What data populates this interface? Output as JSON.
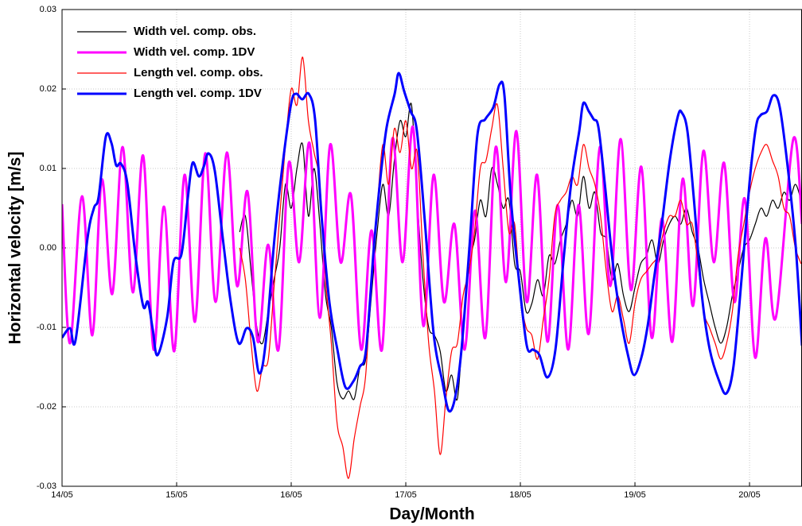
{
  "chart_data": {
    "type": "line",
    "xlabel": "Day/Month",
    "ylabel": "Horizontal velocity [m/s]",
    "xlim": [
      14,
      20.458
    ],
    "ylim": [
      -0.03,
      0.03
    ],
    "xticks": [
      {
        "value": 14,
        "label": "14/05"
      },
      {
        "value": 15,
        "label": "15/05"
      },
      {
        "value": 16,
        "label": "16/05"
      },
      {
        "value": 17,
        "label": "17/05"
      },
      {
        "value": 18,
        "label": "18/05"
      },
      {
        "value": 19,
        "label": "19/05"
      },
      {
        "value": 20,
        "label": "20/05"
      }
    ],
    "yticks": [
      -0.03,
      -0.02,
      -0.01,
      {
        "value": 0,
        "label": "0.00"
      },
      0.01,
      0.02,
      0.03
    ],
    "grid": true,
    "legend": "upper left",
    "series": [
      {
        "name": "Width vel. comp. obs.",
        "color": "#000000",
        "linewidth": 1.2,
        "x": [
          15.55,
          15.6,
          15.65,
          15.7,
          15.75,
          15.8,
          15.85,
          15.9,
          15.95,
          16,
          16.05,
          16.1,
          16.15,
          16.2,
          16.25,
          16.3,
          16.35,
          16.4,
          16.45,
          16.5,
          16.55,
          16.6,
          16.65,
          16.7,
          16.75,
          16.8,
          16.85,
          16.9,
          16.95,
          17,
          17.05,
          17.1,
          17.15,
          17.2,
          17.25,
          17.3,
          17.35,
          17.4,
          17.45,
          17.5,
          17.55,
          17.6,
          17.65,
          17.7,
          17.75,
          17.8,
          17.85,
          17.9,
          17.95,
          18,
          18.05,
          18.1,
          18.15,
          18.2,
          18.25,
          18.3,
          18.35,
          18.4,
          18.45,
          18.5,
          18.55,
          18.6,
          18.65,
          18.7,
          18.75,
          18.8,
          18.85,
          18.9,
          18.95,
          19,
          19.05,
          19.1,
          19.15,
          19.2,
          19.25,
          19.3,
          19.35,
          19.4,
          19.45,
          19.5,
          19.55,
          19.6,
          19.65,
          19.7,
          19.75,
          19.8,
          19.85,
          19.9,
          19.95,
          20,
          20.05,
          20.1,
          20.15,
          20.2,
          20.25,
          20.3,
          20.35,
          20.4,
          20.45
        ],
        "values": [
          0.002,
          0.004,
          -0.003,
          -0.01,
          -0.012,
          -0.008,
          -0.004,
          0,
          0.008,
          0.005,
          0.01,
          0.013,
          0.004,
          0.01,
          0.003,
          -0.006,
          -0.01,
          -0.017,
          -0.019,
          -0.018,
          -0.019,
          -0.015,
          -0.014,
          -0.006,
          0.002,
          0.008,
          0.004,
          0.011,
          0.016,
          0.014,
          0.018,
          0.006,
          -0.004,
          -0.01,
          -0.011,
          -0.013,
          -0.018,
          -0.016,
          -0.019,
          -0.01,
          -0.002,
          0.001,
          0.006,
          0.004,
          0.01,
          0.008,
          0.005,
          0.006,
          -0.002,
          -0.003,
          -0.008,
          -0.007,
          -0.004,
          -0.006,
          -0.001,
          -0.002,
          0.001,
          0.003,
          0.006,
          0.004,
          0.009,
          0.005,
          0.007,
          0.002,
          0.001,
          -0.004,
          -0.002,
          -0.006,
          -0.008,
          -0.005,
          -0.002,
          -0.001,
          0.001,
          -0.002,
          0.001,
          0.003,
          0.004,
          0.003,
          0.005,
          0.002,
          0,
          -0.004,
          -0.007,
          -0.01,
          -0.012,
          -0.01,
          -0.006,
          -0.003,
          0,
          0.001,
          0.003,
          0.005,
          0.004,
          0.006,
          0.005,
          0.007,
          0.006,
          0.008,
          0.006
        ]
      },
      {
        "name": "Width vel. comp. 1DV",
        "color": "#ff00ff",
        "linewidth": 3,
        "x": [
          14,
          14.069,
          14.174,
          14.264,
          14.347,
          14.438,
          14.528,
          14.618,
          14.708,
          14.799,
          14.889,
          14.979,
          15.069,
          15.16,
          15.25,
          15.34,
          15.438,
          15.528,
          15.618,
          15.708,
          15.799,
          15.889,
          15.979,
          16.069,
          16.16,
          16.25,
          16.34,
          16.431,
          16.521,
          16.611,
          16.701,
          16.792,
          16.882,
          16.972,
          17.063,
          17.153,
          17.243,
          17.333,
          17.424,
          17.514,
          17.604,
          17.694,
          17.785,
          17.875,
          17.965,
          18.056,
          18.146,
          18.236,
          18.326,
          18.417,
          18.507,
          18.597,
          18.694,
          18.785,
          18.875,
          18.965,
          19.056,
          19.146,
          19.236,
          19.326,
          19.417,
          19.507,
          19.597,
          19.688,
          19.778,
          19.868,
          19.958,
          20.049,
          20.139,
          20.229,
          20.382,
          20.458
        ],
        "values": [
          0.0055,
          -0.012,
          0.0065,
          -0.011,
          0.0086,
          -0.0058,
          0.0127,
          -0.0056,
          0.0116,
          -0.0128,
          0.0052,
          -0.013,
          0.0092,
          -0.0093,
          0.0119,
          -0.0068,
          0.012,
          -0.0048,
          0.0071,
          -0.0118,
          0.0004,
          -0.0128,
          0.0107,
          -0.0018,
          0.0132,
          -0.0088,
          0.013,
          -0.0018,
          0.0067,
          -0.0128,
          0.0022,
          -0.0128,
          0.0137,
          -0.0018,
          0.0152,
          -0.0098,
          0.0092,
          -0.0068,
          0.003,
          -0.0128,
          0.0047,
          -0.0113,
          0.0127,
          -0.0043,
          0.0147,
          -0.0068,
          0.0092,
          -0.0118,
          0.0054,
          -0.0128,
          0.0054,
          -0.0108,
          0.0127,
          -0.0048,
          0.0137,
          -0.0053,
          0.0102,
          -0.0113,
          0.0037,
          -0.0118,
          0.0087,
          -0.0073,
          0.0122,
          -0.0018,
          0.0107,
          -0.0068,
          0.0062,
          -0.0138,
          0.0012,
          -0.0088,
          0.0137,
          0.003
        ]
      },
      {
        "name": "Length vel. comp. obs.",
        "color": "#ff0000",
        "linewidth": 1.2,
        "x": [
          15.55,
          15.6,
          15.65,
          15.7,
          15.75,
          15.8,
          15.85,
          15.9,
          15.95,
          16,
          16.05,
          16.1,
          16.15,
          16.2,
          16.25,
          16.3,
          16.35,
          16.4,
          16.45,
          16.5,
          16.55,
          16.6,
          16.65,
          16.7,
          16.75,
          16.8,
          16.85,
          16.9,
          16.95,
          17,
          17.05,
          17.1,
          17.15,
          17.2,
          17.25,
          17.3,
          17.35,
          17.4,
          17.45,
          17.5,
          17.55,
          17.6,
          17.65,
          17.7,
          17.75,
          17.8,
          17.85,
          17.9,
          17.95,
          18,
          18.05,
          18.1,
          18.15,
          18.2,
          18.25,
          18.3,
          18.35,
          18.4,
          18.45,
          18.5,
          18.55,
          18.6,
          18.65,
          18.7,
          18.75,
          18.8,
          18.85,
          18.9,
          18.95,
          19,
          19.05,
          19.1,
          19.15,
          19.2,
          19.25,
          19.3,
          19.35,
          19.4,
          19.45,
          19.5,
          19.55,
          19.6,
          19.65,
          19.7,
          19.75,
          19.8,
          19.85,
          19.9,
          19.95,
          20,
          20.05,
          20.1,
          20.15,
          20.2,
          20.25,
          20.3,
          20.35,
          20.4,
          20.45
        ],
        "values": [
          0,
          -0.004,
          -0.012,
          -0.018,
          -0.015,
          -0.014,
          -0.005,
          0.004,
          0.013,
          0.02,
          0.018,
          0.024,
          0.016,
          0.012,
          0.008,
          -0.004,
          -0.012,
          -0.022,
          -0.025,
          -0.029,
          -0.024,
          -0.02,
          -0.016,
          -0.004,
          0.005,
          0.013,
          0.008,
          0.015,
          0.012,
          0.016,
          0.01,
          0.012,
          -0.001,
          -0.012,
          -0.018,
          -0.026,
          -0.019,
          -0.013,
          -0.012,
          -0.006,
          -0.003,
          0.002,
          0.01,
          0.011,
          0.015,
          0.018,
          0.01,
          0.002,
          0.003,
          -0.006,
          -0.01,
          -0.011,
          -0.014,
          -0.009,
          -0.004,
          0.004,
          0.006,
          0.007,
          0.009,
          0.008,
          0.013,
          0.01,
          0.008,
          0.004,
          -0.003,
          -0.008,
          -0.006,
          -0.009,
          -0.012,
          -0.007,
          -0.004,
          -0.003,
          -0.002,
          -0.001,
          0.002,
          0.004,
          0.004,
          0.006,
          0.003,
          0.003,
          -0.002,
          -0.008,
          -0.01,
          -0.012,
          -0.014,
          -0.012,
          -0.008,
          -0.001,
          0.003,
          0.007,
          0.01,
          0.012,
          0.013,
          0.011,
          0.009,
          0.005,
          0.004,
          0,
          -0.002
        ]
      },
      {
        "name": "Length vel. comp. 1DV",
        "color": "#0000ff",
        "linewidth": 3,
        "x": [
          14,
          14.069,
          14.118,
          14.222,
          14.278,
          14.319,
          14.382,
          14.431,
          14.472,
          14.514,
          14.569,
          14.639,
          14.708,
          14.75,
          14.792,
          14.833,
          14.917,
          14.972,
          15.042,
          15.097,
          15.139,
          15.194,
          15.236,
          15.278,
          15.333,
          15.403,
          15.472,
          15.542,
          15.611,
          15.667,
          15.722,
          15.778,
          15.854,
          15.931,
          16,
          16.042,
          16.097,
          16.153,
          16.208,
          16.264,
          16.333,
          16.403,
          16.472,
          16.542,
          16.597,
          16.653,
          16.722,
          16.778,
          16.833,
          16.903,
          16.938,
          16.986,
          17.042,
          17.097,
          17.167,
          17.243,
          17.319,
          17.375,
          17.431,
          17.486,
          17.556,
          17.625,
          17.694,
          17.764,
          17.819,
          17.861,
          17.917,
          17.986,
          18.056,
          18.111,
          18.167,
          18.236,
          18.306,
          18.375,
          18.444,
          18.514,
          18.549,
          18.597,
          18.639,
          18.681,
          18.736,
          18.806,
          18.875,
          18.944,
          18.993,
          19.056,
          19.111,
          19.167,
          19.236,
          19.306,
          19.375,
          19.41,
          19.458,
          19.514,
          19.583,
          19.653,
          19.736,
          19.799,
          19.861,
          19.931,
          20,
          20.056,
          20.097,
          20.153,
          20.208,
          20.264,
          20.333,
          20.403,
          20.458
        ],
        "values": [
          -0.0113,
          -0.0101,
          -0.0116,
          0.0012,
          0.005,
          0.0064,
          0.014,
          0.0132,
          0.0104,
          0.0106,
          0.0082,
          -0.0008,
          -0.0073,
          -0.0068,
          -0.0103,
          -0.0135,
          -0.0088,
          -0.0018,
          -0.0008,
          0.0062,
          0.0107,
          0.009,
          0.0102,
          0.0119,
          0.0097,
          0.0012,
          -0.0068,
          -0.012,
          -0.0101,
          -0.0113,
          -0.0158,
          -0.0118,
          0.0012,
          0.0112,
          0.0182,
          0.0194,
          0.0187,
          0.0194,
          0.0162,
          0.0042,
          -0.0068,
          -0.0128,
          -0.0175,
          -0.0168,
          -0.015,
          -0.0128,
          0.0002,
          0.0087,
          0.0152,
          0.0194,
          0.022,
          0.0197,
          0.0172,
          0.0147,
          0.0032,
          -0.0108,
          -0.0168,
          -0.0205,
          -0.0188,
          -0.0128,
          0.0002,
          0.0142,
          0.0162,
          0.0177,
          0.0206,
          0.0192,
          0.0062,
          -0.0038,
          -0.0123,
          -0.0128,
          -0.0135,
          -0.0163,
          -0.0128,
          -0.0018,
          0.0082,
          0.0147,
          0.0182,
          0.0172,
          0.0162,
          0.0152,
          0.0082,
          -0.0018,
          -0.0088,
          -0.0138,
          -0.016,
          -0.0138,
          -0.0098,
          -0.0038,
          0.0032,
          0.0112,
          0.0166,
          0.017,
          0.0147,
          0.0062,
          -0.0058,
          -0.0128,
          -0.0168,
          -0.0183,
          -0.0148,
          -0.0038,
          0.0082,
          0.0152,
          0.0167,
          0.0172,
          0.0192,
          0.0177,
          0.0102,
          0.0002,
          -0.0123
        ]
      }
    ]
  }
}
